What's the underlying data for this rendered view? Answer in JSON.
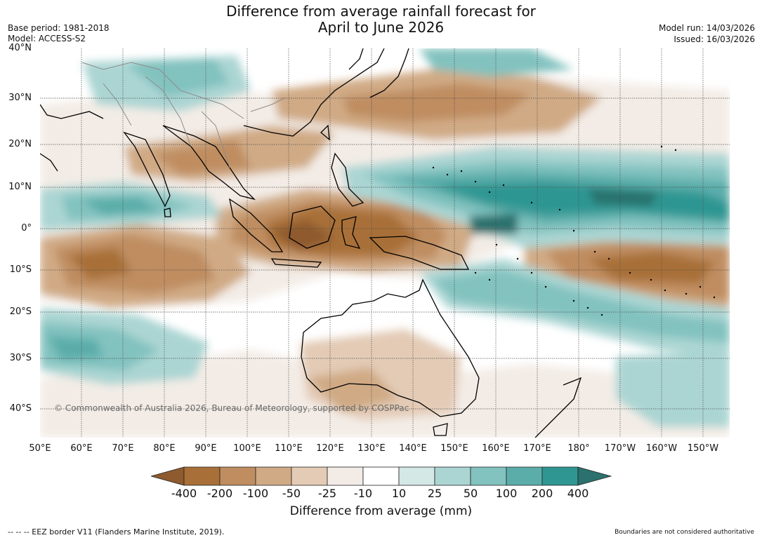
{
  "title": {
    "line1": "Difference from average rainfall forecast for",
    "line2": "April to June 2026"
  },
  "meta": {
    "base_period": "Base period: 1981-2018",
    "model": "Model: ACCESS-S2",
    "model_run": "Model run: 14/03/2026",
    "issued": "Issued: 16/03/2026"
  },
  "map": {
    "region": "Asia-Pacific",
    "lat_labels": [
      "40°N",
      "30°N",
      "20°N",
      "10°N",
      "0°",
      "10°S",
      "20°S",
      "30°S",
      "40°S"
    ],
    "lon_labels": [
      "50°E",
      "60°E",
      "70°E",
      "80°E",
      "90°E",
      "100°E",
      "110°E",
      "120°E",
      "130°E",
      "140°E",
      "150°E",
      "160°E",
      "170°E",
      "180°",
      "170°W",
      "160°W",
      "150°W"
    ],
    "copyright": "© Commonwealth of Australia 2026, Bureau of Meteorology, supported by COSPPac",
    "colors": {
      "coast": "#000000",
      "border": "#8c8c8c",
      "grid": "#4d4d4d"
    }
  },
  "legend": {
    "tick_labels": [
      "-400",
      "-200",
      "-100",
      "-50",
      "-25",
      "-10",
      "10",
      "25",
      "50",
      "100",
      "200",
      "400"
    ],
    "colors": [
      "#8e5a2e",
      "#a87038",
      "#bf8d60",
      "#d0aa85",
      "#e3cbb6",
      "#f3ece6",
      "#ffffff",
      "#d4e8e6",
      "#abd5d3",
      "#82c2bf",
      "#5badaa",
      "#2f9692",
      "#2b716d"
    ],
    "title": "Difference from average (mm)"
  },
  "footer": {
    "eez": "--  --  -- EEZ border V11 (Flanders Marine Institute, 2019).",
    "disclaimer": "Boundaries are not considered authoritative"
  }
}
